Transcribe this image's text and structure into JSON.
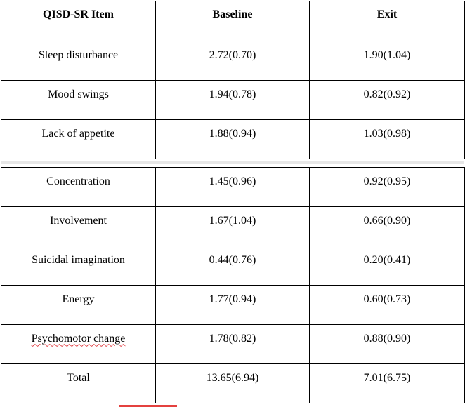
{
  "table": {
    "headers": {
      "item": "QISD-SR Item",
      "baseline": "Baseline",
      "exit": "Exit"
    },
    "rows_top": [
      {
        "item": "Sleep disturbance",
        "baseline": "2.72(0.70)",
        "exit": "1.90(1.04)"
      },
      {
        "item": "Mood swings",
        "baseline": "1.94(0.78)",
        "exit": "0.82(0.92)"
      },
      {
        "item": "Lack of appetite",
        "baseline": "1.88(0.94)",
        "exit": "1.03(0.98)"
      }
    ],
    "rows_bottom": [
      {
        "item": "Concentration",
        "baseline": "1.45(0.96)",
        "exit": "0.92(0.95)"
      },
      {
        "item": "Involvement",
        "baseline": "1.67(1.04)",
        "exit": "0.66(0.90)"
      },
      {
        "item": "Suicidal imagination",
        "baseline": "0.44(0.76)",
        "exit": "0.20(0.41)"
      },
      {
        "item": "Energy",
        "baseline": "1.77(0.94)",
        "exit": "0.60(0.73)"
      },
      {
        "item": "Psychomotor change",
        "baseline": "1.78(0.82)",
        "exit": "0.88(0.90)"
      },
      {
        "item": "Total",
        "baseline": "13.65(6.94)",
        "exit": "7.01(6.75)"
      }
    ]
  },
  "colors": {
    "border": "#000000",
    "spellcheck_underline": "#e0393e",
    "page_break_band": "#e7e7e7"
  }
}
